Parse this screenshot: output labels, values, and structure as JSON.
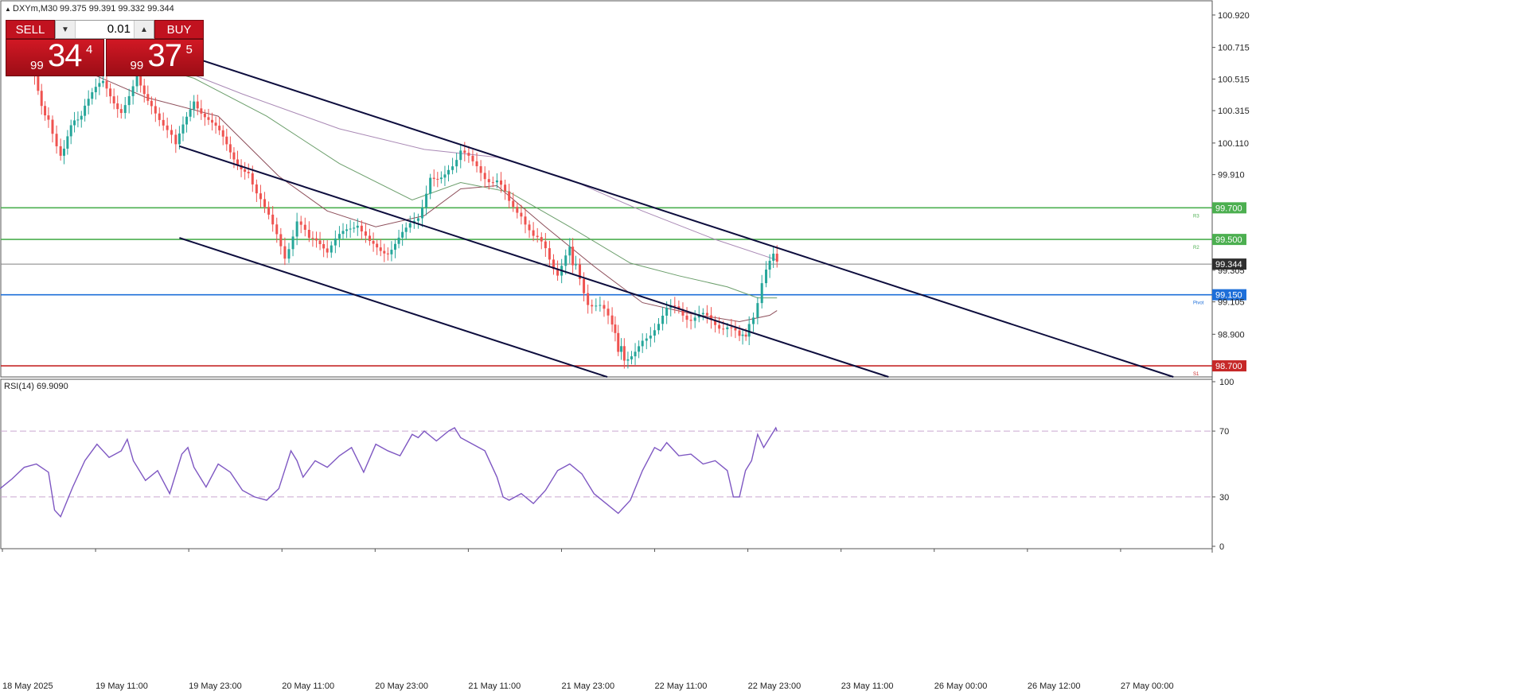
{
  "header": {
    "symbol_title": "DXYm,M30",
    "ohlc": "99.375 99.391 99.332 99.344"
  },
  "trade_panel": {
    "sell_label": "SELL",
    "buy_label": "BUY",
    "lot_value": "0.01",
    "sell_price": {
      "prefix": "99",
      "big": "34",
      "sup": "4"
    },
    "buy_price": {
      "prefix": "99",
      "big": "37",
      "sup": "5"
    }
  },
  "colors": {
    "bull": "#26a69a",
    "bear": "#ef5350",
    "level_resistance": "#4caf50",
    "level_pivot": "#1e6fd9",
    "level_support": "#c62828",
    "channel": "#0d0d3d",
    "rsi": "#7e57c2",
    "current_price": "#808080"
  },
  "chart_data": {
    "type": "line",
    "title": "DXYm,M30",
    "price_axis": {
      "ylim": [
        98.63,
        101.0
      ],
      "tick_labels": [
        "100.920",
        "100.715",
        "100.515",
        "100.315",
        "100.110",
        "99.910",
        "99.305",
        "99.105",
        "98.900"
      ]
    },
    "x_labels": [
      "18 May 2025",
      "19 May 11:00",
      "19 May 23:00",
      "20 May 11:00",
      "20 May 23:00",
      "21 May 11:00",
      "21 May 23:00",
      "22 May 11:00",
      "22 May 23:00",
      "23 May 11:00",
      "26 May 00:00",
      "26 May 12:00",
      "27 May 00:00"
    ],
    "close_series": {
      "name": "DXYm",
      "points": [
        [
          0.02,
          100.69
        ],
        [
          0.04,
          100.25
        ],
        [
          0.05,
          100.06
        ],
        [
          0.07,
          100.36
        ],
        [
          0.085,
          100.48
        ],
        [
          0.1,
          100.33
        ],
        [
          0.113,
          100.55
        ],
        [
          0.125,
          100.36
        ],
        [
          0.138,
          100.22
        ],
        [
          0.145,
          100.07
        ],
        [
          0.16,
          100.4
        ],
        [
          0.175,
          100.22
        ],
        [
          0.19,
          100.06
        ],
        [
          0.205,
          99.92
        ],
        [
          0.215,
          99.78
        ],
        [
          0.225,
          99.56
        ],
        [
          0.235,
          99.4
        ],
        [
          0.245,
          99.62
        ],
        [
          0.255,
          99.48
        ],
        [
          0.27,
          99.44
        ],
        [
          0.28,
          99.5
        ],
        [
          0.295,
          99.62
        ],
        [
          0.305,
          99.46
        ],
        [
          0.32,
          99.44
        ],
        [
          0.335,
          99.54
        ],
        [
          0.345,
          99.66
        ],
        [
          0.355,
          99.89
        ],
        [
          0.37,
          99.95
        ],
        [
          0.38,
          100.08
        ],
        [
          0.39,
          99.96
        ],
        [
          0.4,
          99.91
        ],
        [
          0.41,
          99.87
        ],
        [
          0.42,
          99.72
        ],
        [
          0.43,
          99.68
        ],
        [
          0.44,
          99.5
        ],
        [
          0.45,
          99.44
        ],
        [
          0.46,
          99.3
        ],
        [
          0.47,
          99.42
        ],
        [
          0.475,
          99.32
        ],
        [
          0.485,
          99.12
        ],
        [
          0.495,
          99.06
        ],
        [
          0.505,
          98.96
        ],
        [
          0.51,
          98.82
        ],
        [
          0.515,
          98.76
        ],
        [
          0.53,
          98.84
        ],
        [
          0.54,
          98.96
        ],
        [
          0.55,
          99.04
        ],
        [
          0.56,
          99.06
        ],
        [
          0.57,
          99.01
        ],
        [
          0.58,
          99.0
        ],
        [
          0.59,
          98.98
        ],
        [
          0.6,
          98.95
        ],
        [
          0.61,
          98.86
        ],
        [
          0.618,
          98.95
        ],
        [
          0.625,
          99.12
        ],
        [
          0.632,
          99.28
        ],
        [
          0.638,
          99.38
        ],
        [
          0.641,
          99.344
        ]
      ]
    },
    "moving_averages": [
      {
        "name": "",
        "color": "#8d4e5a",
        "points": [
          [
            0.06,
            100.6
          ],
          [
            0.12,
            100.4
          ],
          [
            0.18,
            100.28
          ],
          [
            0.23,
            99.9
          ],
          [
            0.27,
            99.68
          ],
          [
            0.31,
            99.58
          ],
          [
            0.35,
            99.65
          ],
          [
            0.38,
            99.82
          ],
          [
            0.41,
            99.84
          ],
          [
            0.45,
            99.58
          ],
          [
            0.49,
            99.33
          ],
          [
            0.53,
            99.1
          ],
          [
            0.57,
            99.03
          ],
          [
            0.61,
            98.98
          ],
          [
            0.635,
            99.02
          ],
          [
            0.641,
            99.05
          ]
        ]
      },
      {
        "name": "",
        "color": "#6b9e6b",
        "points": [
          [
            0.1,
            100.65
          ],
          [
            0.16,
            100.52
          ],
          [
            0.22,
            100.28
          ],
          [
            0.28,
            99.98
          ],
          [
            0.34,
            99.75
          ],
          [
            0.38,
            99.86
          ],
          [
            0.42,
            99.8
          ],
          [
            0.47,
            99.58
          ],
          [
            0.52,
            99.35
          ],
          [
            0.56,
            99.27
          ],
          [
            0.6,
            99.2
          ],
          [
            0.625,
            99.13
          ],
          [
            0.641,
            99.13
          ]
        ]
      },
      {
        "name": "",
        "color": "#a989b5",
        "points": [
          [
            0.12,
            100.66
          ],
          [
            0.2,
            100.42
          ],
          [
            0.28,
            100.2
          ],
          [
            0.35,
            100.07
          ],
          [
            0.41,
            100.02
          ],
          [
            0.47,
            99.88
          ],
          [
            0.53,
            99.68
          ],
          [
            0.59,
            99.5
          ],
          [
            0.641,
            99.37
          ]
        ]
      }
    ],
    "horizontal_levels": [
      {
        "value": 99.7,
        "label": "99.700",
        "tag": "R3",
        "color_key": "level_resistance"
      },
      {
        "value": 99.5,
        "label": "99.500",
        "tag": "R2",
        "color_key": "level_resistance"
      },
      {
        "value": 99.15,
        "label": "99.150",
        "tag": "Pivot",
        "color_key": "level_pivot"
      },
      {
        "value": 98.7,
        "label": "98.700",
        "tag": "S1",
        "color_key": "level_support"
      }
    ],
    "current_price": {
      "value": 99.344,
      "label": "99.344"
    },
    "channel_lines": [
      {
        "from": [
          0.148,
          100.68
        ],
        "to": [
          0.968,
          98.63
        ]
      },
      {
        "from": [
          0.148,
          100.09
        ],
        "to": [
          0.733,
          98.63
        ]
      },
      {
        "from": [
          0.148,
          99.51
        ],
        "to": [
          0.501,
          98.63
        ]
      }
    ],
    "rsi": {
      "label": "RSI(14) 69.9090",
      "ylim": [
        0,
        100
      ],
      "ticks": [
        100,
        70,
        30,
        0
      ],
      "levels": [
        70,
        30
      ],
      "points": [
        [
          0.0,
          35
        ],
        [
          0.01,
          41
        ],
        [
          0.02,
          48
        ],
        [
          0.03,
          50
        ],
        [
          0.04,
          45
        ],
        [
          0.045,
          22
        ],
        [
          0.05,
          18
        ],
        [
          0.06,
          36
        ],
        [
          0.07,
          52
        ],
        [
          0.08,
          62
        ],
        [
          0.09,
          54
        ],
        [
          0.1,
          58
        ],
        [
          0.105,
          65
        ],
        [
          0.11,
          52
        ],
        [
          0.12,
          40
        ],
        [
          0.13,
          46
        ],
        [
          0.14,
          32
        ],
        [
          0.15,
          56
        ],
        [
          0.155,
          60
        ],
        [
          0.16,
          48
        ],
        [
          0.17,
          36
        ],
        [
          0.18,
          50
        ],
        [
          0.19,
          45
        ],
        [
          0.2,
          34
        ],
        [
          0.21,
          30
        ],
        [
          0.22,
          28
        ],
        [
          0.23,
          35
        ],
        [
          0.24,
          58
        ],
        [
          0.245,
          52
        ],
        [
          0.25,
          42
        ],
        [
          0.26,
          52
        ],
        [
          0.27,
          48
        ],
        [
          0.28,
          55
        ],
        [
          0.29,
          60
        ],
        [
          0.3,
          45
        ],
        [
          0.31,
          62
        ],
        [
          0.32,
          58
        ],
        [
          0.33,
          55
        ],
        [
          0.34,
          68
        ],
        [
          0.345,
          66
        ],
        [
          0.35,
          70
        ],
        [
          0.36,
          64
        ],
        [
          0.37,
          70
        ],
        [
          0.375,
          72
        ],
        [
          0.38,
          66
        ],
        [
          0.39,
          62
        ],
        [
          0.4,
          58
        ],
        [
          0.41,
          42
        ],
        [
          0.415,
          30
        ],
        [
          0.42,
          28
        ],
        [
          0.43,
          32
        ],
        [
          0.44,
          26
        ],
        [
          0.45,
          34
        ],
        [
          0.46,
          46
        ],
        [
          0.47,
          50
        ],
        [
          0.48,
          44
        ],
        [
          0.49,
          32
        ],
        [
          0.5,
          26
        ],
        [
          0.51,
          20
        ],
        [
          0.52,
          28
        ],
        [
          0.53,
          46
        ],
        [
          0.54,
          60
        ],
        [
          0.545,
          58
        ],
        [
          0.55,
          63
        ],
        [
          0.56,
          55
        ],
        [
          0.57,
          56
        ],
        [
          0.58,
          50
        ],
        [
          0.59,
          52
        ],
        [
          0.6,
          46
        ],
        [
          0.605,
          30
        ],
        [
          0.61,
          30
        ],
        [
          0.615,
          46
        ],
        [
          0.62,
          52
        ],
        [
          0.625,
          68
        ],
        [
          0.63,
          60
        ],
        [
          0.635,
          66
        ],
        [
          0.64,
          72
        ],
        [
          0.641,
          70
        ]
      ]
    },
    "ylabel": "",
    "xlabel": ""
  }
}
